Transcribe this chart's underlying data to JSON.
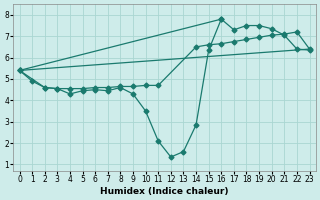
{
  "xlabel": "Humidex (Indice chaleur)",
  "xlim": [
    -0.5,
    23.5
  ],
  "ylim": [
    0.7,
    8.5
  ],
  "xticks": [
    0,
    1,
    2,
    3,
    4,
    5,
    6,
    7,
    8,
    9,
    10,
    11,
    12,
    13,
    14,
    15,
    16,
    17,
    18,
    19,
    20,
    21,
    22,
    23
  ],
  "yticks": [
    1,
    2,
    3,
    4,
    5,
    6,
    7,
    8
  ],
  "bg_color": "#ceecea",
  "grid_color": "#aad6d2",
  "line_color": "#1a7a6e",
  "line1_x": [
    0,
    1,
    2,
    3,
    4,
    5,
    6,
    7,
    8,
    9,
    10,
    11,
    12,
    13,
    14,
    15,
    16
  ],
  "line1_y": [
    5.4,
    4.9,
    4.6,
    4.55,
    4.3,
    4.45,
    4.5,
    4.45,
    4.6,
    4.3,
    3.5,
    2.1,
    1.35,
    1.6,
    2.85,
    6.35,
    7.8
  ],
  "line2_x": [
    0,
    16,
    17,
    18,
    19,
    20,
    21,
    22,
    23
  ],
  "line2_y": [
    5.4,
    7.8,
    7.3,
    7.5,
    7.5,
    7.35,
    7.05,
    6.4,
    6.35
  ],
  "line3_x": [
    0,
    2,
    3,
    4,
    5,
    6,
    7,
    8,
    9,
    10,
    11,
    14,
    15,
    16,
    17,
    18,
    19,
    20,
    21,
    22,
    23
  ],
  "line3_y": [
    5.4,
    4.6,
    4.55,
    4.55,
    4.55,
    4.6,
    4.6,
    4.65,
    4.65,
    4.7,
    4.7,
    6.5,
    6.6,
    6.65,
    6.75,
    6.85,
    6.95,
    7.05,
    7.1,
    7.2,
    6.4
  ],
  "line4_x": [
    0,
    23
  ],
  "line4_y": [
    5.4,
    6.4
  ],
  "figsize": [
    3.2,
    2.0
  ],
  "dpi": 100
}
